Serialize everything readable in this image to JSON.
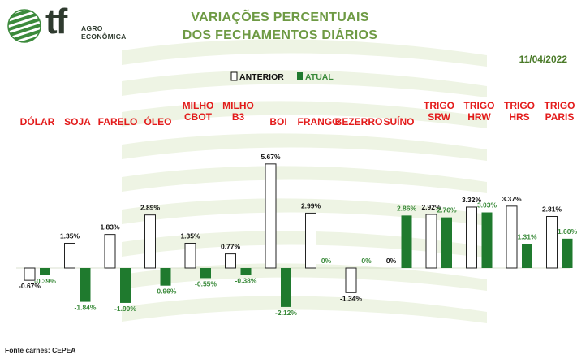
{
  "logo": {
    "mark": "tf",
    "line1": "AGRO",
    "line2": "ECONÔMICA",
    "icon": "striped-globe-icon"
  },
  "header": {
    "title_line1": "VARIAÇÕES PERCENTUAIS",
    "title_line2": "DOS FECHAMENTOS DIÁRIOS",
    "date": "11/04/2022"
  },
  "footer": {
    "source": "Fonte carnes: CEPEA"
  },
  "colors": {
    "title": "#6e9a44",
    "category_label": "#e31b1b",
    "actual_bar": "#1f7a2e",
    "actual_label": "#3a8a3a",
    "previous_bar_fill": "#ffffff",
    "previous_bar_stroke": "#222222"
  },
  "chart_data": {
    "type": "bar",
    "title": "VARIAÇÕES PERCENTUAIS DOS FECHAMENTOS DIÁRIOS",
    "xlabel": "",
    "ylabel": "",
    "legend_position": "top-center",
    "grid": false,
    "categories": [
      [
        "DÓLAR"
      ],
      [
        "SOJA"
      ],
      [
        "FARELO"
      ],
      [
        "ÓLEO"
      ],
      [
        "MILHO",
        "CBOT"
      ],
      [
        "MILHO",
        "B3"
      ],
      [
        "BOI"
      ],
      [
        "FRANGO"
      ],
      [
        "BEZERRO"
      ],
      [
        "SUÍNO"
      ],
      [
        "TRIGO",
        "SRW"
      ],
      [
        "TRIGO",
        "HRW"
      ],
      [
        "TRIGO",
        "HRS"
      ],
      [
        "TRIGO",
        "PARIS"
      ]
    ],
    "series": [
      {
        "name": "ANTERIOR",
        "values": [
          -0.67,
          1.35,
          1.83,
          2.89,
          1.35,
          0.77,
          5.67,
          2.99,
          -1.34,
          0,
          2.92,
          3.32,
          3.37,
          2.81
        ],
        "labels": [
          "-0.67%",
          "1.35%",
          "1.83%",
          "2.89%",
          "1.35%",
          "0.77%",
          "5.67%",
          "2.99%",
          "-1.34%",
          "0%",
          "2.92%",
          "3.32%",
          "3.37%",
          "2.81%"
        ]
      },
      {
        "name": "ATUAL",
        "values": [
          -0.39,
          -1.84,
          -1.9,
          -0.96,
          -0.55,
          -0.38,
          -2.12,
          0,
          0,
          2.86,
          2.76,
          3.03,
          1.31,
          1.6
        ],
        "labels": [
          "-0.39%",
          "-1.84%",
          "-1.90%",
          "-0.96%",
          "-0.55%",
          "-0.38%",
          "-2.12%",
          "0%",
          "0%",
          "2.86%",
          "2.76%",
          "3.03%",
          "1.31%",
          "1.60%"
        ]
      }
    ]
  }
}
